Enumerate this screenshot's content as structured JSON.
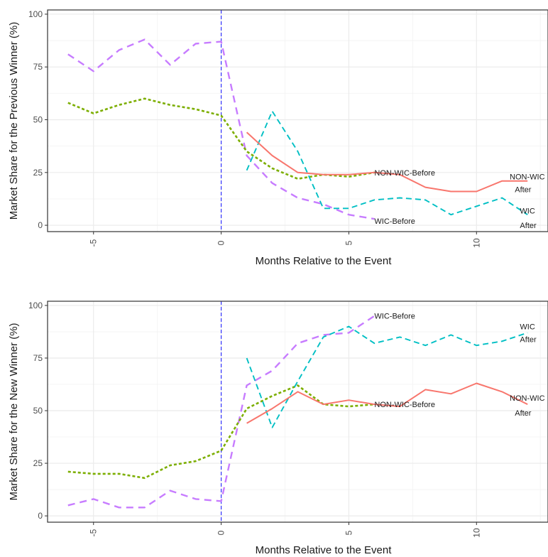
{
  "colors": {
    "wic_before": "#C77CFF",
    "non_wic_before": "#7CAE00",
    "wic_after": "#00BFC4",
    "non_wic_after": "#F8766D",
    "event_line": "#3333ff",
    "grid": "#ebebeb",
    "grid_minor": "#f4f4f4",
    "panel_border": "#333333"
  },
  "chart_data": [
    {
      "type": "line",
      "title": "",
      "xlabel": "Months Relative to the Event",
      "ylabel": "Market Share for the Previous Winner (%)",
      "xlim": [
        -6.8,
        12.8
      ],
      "ylim": [
        -3,
        102
      ],
      "xticks": [
        -5,
        0,
        5,
        10
      ],
      "yticks": [
        0,
        25,
        50,
        75,
        100
      ],
      "event_x": 0,
      "series": [
        {
          "key": "wic_before",
          "x": [
            -6,
            -5,
            -4,
            -3,
            -2,
            -1,
            0,
            1,
            2,
            3,
            4,
            5,
            6
          ],
          "y": [
            81,
            73,
            83,
            88,
            76,
            86,
            87,
            33,
            20,
            13,
            10,
            5,
            3
          ]
        },
        {
          "key": "non_wic_before",
          "x": [
            -6,
            -5,
            -4,
            -3,
            -2,
            -1,
            0,
            1,
            2,
            3,
            4,
            5,
            6
          ],
          "y": [
            58,
            53,
            57,
            60,
            57,
            55,
            52,
            35,
            27,
            22,
            24,
            23,
            25
          ]
        },
        {
          "key": "wic_after",
          "x": [
            1,
            2,
            3,
            4,
            5,
            6,
            7,
            8,
            9,
            10,
            11,
            12
          ],
          "y": [
            26,
            54,
            35,
            8,
            8,
            12,
            13,
            12,
            5,
            9,
            13,
            5
          ]
        },
        {
          "key": "non_wic_after",
          "x": [
            1,
            2,
            3,
            4,
            5,
            6,
            7,
            8,
            9,
            10,
            11,
            12
          ],
          "y": [
            44,
            33,
            25,
            24,
            24,
            25,
            24,
            18,
            16,
            16,
            21,
            21
          ]
        }
      ],
      "annotations": [
        {
          "text": "NON-WIC-Before",
          "x": 6.0,
          "y": 25
        },
        {
          "text": "WIC-Before",
          "x": 6.0,
          "y": 2
        },
        {
          "text": "NON-WIC",
          "x": 11.3,
          "y": 23
        },
        {
          "text": "After",
          "x": 11.5,
          "y": 17
        },
        {
          "text": "WIC",
          "x": 11.7,
          "y": 7
        },
        {
          "text": "After",
          "x": 11.7,
          "y": 0
        }
      ]
    },
    {
      "type": "line",
      "title": "",
      "xlabel": "Months Relative to the Event",
      "ylabel": "Market Share for the New Winner (%)",
      "xlim": [
        -6.8,
        12.8
      ],
      "ylim": [
        -3,
        102
      ],
      "xticks": [
        -5,
        0,
        5,
        10
      ],
      "yticks": [
        0,
        25,
        50,
        75,
        100
      ],
      "event_x": 0,
      "series": [
        {
          "key": "wic_before",
          "x": [
            -6,
            -5,
            -4,
            -3,
            -2,
            -1,
            0,
            1,
            2,
            3,
            4,
            5,
            6
          ],
          "y": [
            5,
            8,
            4,
            4,
            12,
            8,
            7,
            62,
            69,
            82,
            86,
            87,
            95
          ]
        },
        {
          "key": "non_wic_before",
          "x": [
            -6,
            -5,
            -4,
            -3,
            -2,
            -1,
            0,
            1,
            2,
            3,
            4,
            5,
            6
          ],
          "y": [
            21,
            20,
            20,
            18,
            24,
            26,
            31,
            51,
            57,
            62,
            53,
            52,
            53
          ]
        },
        {
          "key": "wic_after",
          "x": [
            1,
            2,
            3,
            4,
            5,
            6,
            7,
            8,
            9,
            10,
            11,
            12
          ],
          "y": [
            75,
            42,
            64,
            85,
            90,
            82,
            85,
            81,
            86,
            81,
            83,
            87
          ]
        },
        {
          "key": "non_wic_after",
          "x": [
            1,
            2,
            3,
            4,
            5,
            6,
            7,
            8,
            9,
            10,
            11,
            12
          ],
          "y": [
            44,
            51,
            59,
            53,
            55,
            53,
            52,
            60,
            58,
            63,
            59,
            53
          ]
        }
      ],
      "annotations": [
        {
          "text": "WIC-Before",
          "x": 6.0,
          "y": 95
        },
        {
          "text": "NON-WIC-Before",
          "x": 6.0,
          "y": 53
        },
        {
          "text": "WIC",
          "x": 11.7,
          "y": 90
        },
        {
          "text": "After",
          "x": 11.7,
          "y": 84
        },
        {
          "text": "NON-WIC",
          "x": 11.3,
          "y": 56
        },
        {
          "text": "After",
          "x": 11.5,
          "y": 49
        }
      ]
    }
  ]
}
